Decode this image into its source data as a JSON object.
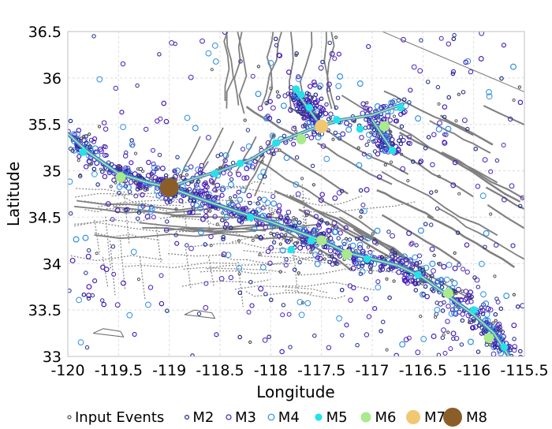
{
  "chart_data": {
    "type": "scatter",
    "xlabel": "Longitude",
    "ylabel": "Latitude",
    "xlim": [
      -120,
      -115.5
    ],
    "ylim": [
      33,
      36.5
    ],
    "xticks": [
      -120,
      -119.5,
      -119,
      -118.5,
      -118,
      -117.5,
      -117,
      -116.5,
      -116,
      -115.5
    ],
    "xtick_labels": [
      "-120",
      "-119.5",
      "-119",
      "-118.5",
      "-118",
      "-117.5",
      "-117",
      "-116.5",
      "-116",
      "-115.5"
    ],
    "yticks": [
      33,
      33.5,
      34,
      34.5,
      35,
      35.5,
      36,
      36.5
    ],
    "ytick_labels": [
      "33",
      "33.5",
      "34",
      "34.5",
      "35",
      "35.5",
      "36",
      "36.5"
    ],
    "grid": true,
    "legend_position": "bottom",
    "colors": {
      "input": "#555555",
      "m2": "#1c2a8a",
      "m3": "#4a1fb8",
      "m4": "#2f8fe0",
      "m5": "#22e3e8",
      "m6": "#a8ea8c",
      "m7": "#f0c872",
      "m8": "#8b5e28",
      "fault": "#808080",
      "main_trace": "#3b7fe0"
    },
    "legend": [
      {
        "key": "input",
        "label": "Input Events"
      },
      {
        "key": "m2",
        "label": "M2"
      },
      {
        "key": "m3",
        "label": "M3"
      },
      {
        "key": "m4",
        "label": "M4"
      },
      {
        "key": "m5",
        "label": "M5"
      },
      {
        "key": "m6",
        "label": "M6"
      },
      {
        "key": "m7",
        "label": "M7"
      },
      {
        "key": "m8",
        "label": "M8"
      }
    ],
    "main_fault_trace": [
      [
        -120.0,
        35.4
      ],
      [
        -119.8,
        35.2
      ],
      [
        -119.5,
        34.97
      ],
      [
        -119.2,
        34.87
      ],
      [
        -119.0,
        34.82
      ],
      [
        -118.7,
        34.7
      ],
      [
        -118.3,
        34.55
      ],
      [
        -118.0,
        34.45
      ],
      [
        -117.75,
        34.35
      ],
      [
        -117.5,
        34.25
      ],
      [
        -117.25,
        34.12
      ],
      [
        -117.0,
        34.05
      ],
      [
        -116.75,
        33.98
      ],
      [
        -116.5,
        33.85
      ],
      [
        -116.25,
        33.65
      ],
      [
        -116.0,
        33.45
      ],
      [
        -115.8,
        33.25
      ],
      [
        -115.65,
        33.0
      ]
    ],
    "branch_traces": [
      [
        [
          -119.0,
          34.82
        ],
        [
          -118.75,
          34.92
        ],
        [
          -118.5,
          35.0
        ],
        [
          -118.2,
          35.12
        ],
        [
          -117.9,
          35.32
        ],
        [
          -117.6,
          35.45
        ],
        [
          -117.3,
          35.55
        ],
        [
          -117.0,
          35.6
        ],
        [
          -116.7,
          35.72
        ]
      ],
      [
        [
          -117.75,
          35.85
        ],
        [
          -117.65,
          35.7
        ],
        [
          -117.55,
          35.55
        ]
      ],
      [
        [
          -117.0,
          35.55
        ],
        [
          -116.9,
          35.38
        ],
        [
          -116.8,
          35.22
        ]
      ]
    ],
    "large_events": [
      {
        "mag": "m8",
        "lon": -119.0,
        "lat": 34.82
      },
      {
        "mag": "m7",
        "lon": -117.5,
        "lat": 35.48
      },
      {
        "mag": "m6",
        "lon": -119.48,
        "lat": 34.93
      },
      {
        "mag": "m6",
        "lon": -116.88,
        "lat": 35.48
      },
      {
        "mag": "m6",
        "lon": -117.7,
        "lat": 35.34
      },
      {
        "mag": "m6",
        "lon": -117.5,
        "lat": 34.25
      },
      {
        "mag": "m6",
        "lon": -117.25,
        "lat": 34.1
      },
      {
        "mag": "m6",
        "lon": -116.25,
        "lat": 33.68
      },
      {
        "mag": "m6",
        "lon": -115.85,
        "lat": 33.2
      },
      {
        "mag": "m5",
        "lon": -117.75,
        "lat": 35.88
      },
      {
        "mag": "m5",
        "lon": -117.7,
        "lat": 35.82
      },
      {
        "mag": "m5",
        "lon": -117.62,
        "lat": 35.68
      },
      {
        "mag": "m5",
        "lon": -117.35,
        "lat": 35.55
      },
      {
        "mag": "m5",
        "lon": -117.12,
        "lat": 35.45
      },
      {
        "mag": "m5",
        "lon": -116.72,
        "lat": 35.68
      },
      {
        "mag": "m5",
        "lon": -116.8,
        "lat": 35.22
      },
      {
        "mag": "m5",
        "lon": -117.95,
        "lat": 35.3
      },
      {
        "mag": "m5",
        "lon": -118.3,
        "lat": 35.08
      },
      {
        "mag": "m5",
        "lon": -118.55,
        "lat": 34.97
      },
      {
        "mag": "m5",
        "lon": -119.85,
        "lat": 35.2
      },
      {
        "mag": "m5",
        "lon": -118.2,
        "lat": 34.5
      },
      {
        "mag": "m5",
        "lon": -117.8,
        "lat": 34.15
      },
      {
        "mag": "m5",
        "lon": -117.6,
        "lat": 34.25
      },
      {
        "mag": "m5",
        "lon": -117.05,
        "lat": 34.05
      },
      {
        "mag": "m5",
        "lon": -116.55,
        "lat": 33.88
      },
      {
        "mag": "m5",
        "lon": -116.0,
        "lat": 33.5
      },
      {
        "mag": "m5",
        "lon": -115.7,
        "lat": 33.1
      }
    ]
  }
}
